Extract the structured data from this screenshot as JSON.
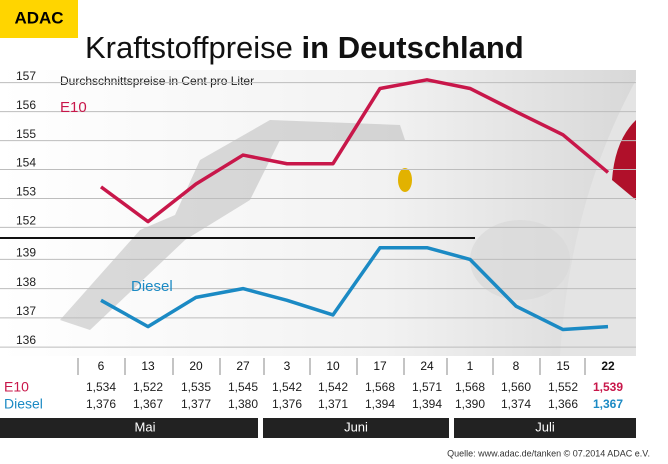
{
  "chart_data": {
    "type": "line",
    "brand": "ADAC",
    "title": "Kraftstoffpreise",
    "title_bold": "in Deutschland",
    "subtitle": "Durchschnittspreise in Cent pro Liter",
    "categories": [
      "6",
      "13",
      "20",
      "27",
      "3",
      "10",
      "17",
      "24",
      "1",
      "8",
      "15",
      "22"
    ],
    "months": [
      "Mai",
      "Juni",
      "Juli"
    ],
    "ylim": [
      151.6,
      157.3
    ],
    "yticks": [
      152,
      153,
      154,
      155,
      156,
      157
    ],
    "y2lim": [
      135.9,
      139.8
    ],
    "y2ticks": [
      136,
      137,
      138,
      139
    ],
    "grid": true,
    "series": [
      {
        "name": "E10",
        "color": "#c8174a",
        "values": [
          153.4,
          152.2,
          153.5,
          154.5,
          154.2,
          154.2,
          156.8,
          157.1,
          156.8,
          156.0,
          155.2,
          153.9
        ],
        "value_labels": [
          "1,534",
          "1,522",
          "1,535",
          "1,545",
          "1,542",
          "1,542",
          "1,568",
          "1,571",
          "1,568",
          "1,560",
          "1,552",
          "1,539"
        ]
      },
      {
        "name": "Diesel",
        "color": "#1b8ac4",
        "axis": "y2",
        "values": [
          137.6,
          136.7,
          137.7,
          138.0,
          137.6,
          137.1,
          139.4,
          139.4,
          139.0,
          137.4,
          136.6,
          136.7
        ],
        "value_labels": [
          "1,376",
          "1,367",
          "1,377",
          "1,380",
          "1,376",
          "1,371",
          "1,394",
          "1,394",
          "1,390",
          "1,374",
          "1,366",
          "1,367"
        ]
      }
    ],
    "source": "Quelle: www.adac.de/tanken   © 07.2014  ADAC e.V."
  }
}
